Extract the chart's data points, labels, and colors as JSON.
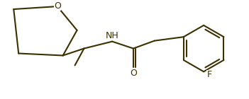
{
  "bg_color": "#ffffff",
  "line_color": "#3d3000",
  "line_width": 1.5,
  "text_color": "#3d3000",
  "label_O_ring": "O",
  "label_NH": "NH",
  "label_O_carbonyl": "O",
  "label_F": "F",
  "font_size": 9
}
